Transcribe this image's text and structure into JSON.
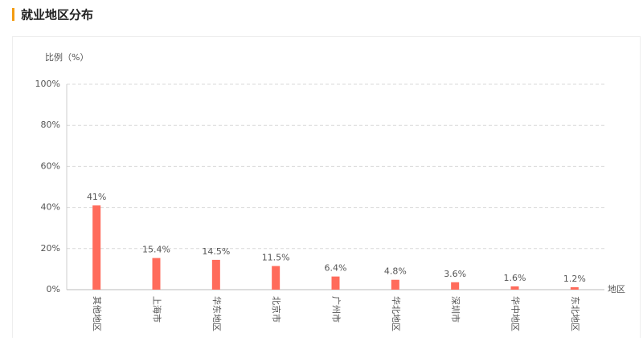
{
  "chart_data": {
    "type": "bar",
    "title": "就业地区分布",
    "y_label": "比例（%）",
    "x_label": "地区",
    "categories": [
      "其他地区",
      "上海市",
      "华东地区",
      "北京市",
      "广州市",
      "华北地区",
      "深圳市",
      "华中地区",
      "东北地区"
    ],
    "values": [
      41,
      15.4,
      14.5,
      11.5,
      6.4,
      4.8,
      3.6,
      1.6,
      1.2
    ],
    "value_labels": [
      "41%",
      "15.4%",
      "14.5%",
      "11.5%",
      "6.4%",
      "4.8%",
      "3.6%",
      "1.6%",
      "1.2%"
    ],
    "color": "#ff6b5b",
    "ylim": [
      0,
      100
    ],
    "yticks": [
      {
        "value": 0,
        "label": "0%"
      },
      {
        "value": 20,
        "label": "20%"
      },
      {
        "value": 40,
        "label": "40%"
      },
      {
        "value": 60,
        "label": "60%"
      },
      {
        "value": 80,
        "label": "80%"
      },
      {
        "value": 100,
        "label": "100%"
      }
    ],
    "grid": true
  }
}
